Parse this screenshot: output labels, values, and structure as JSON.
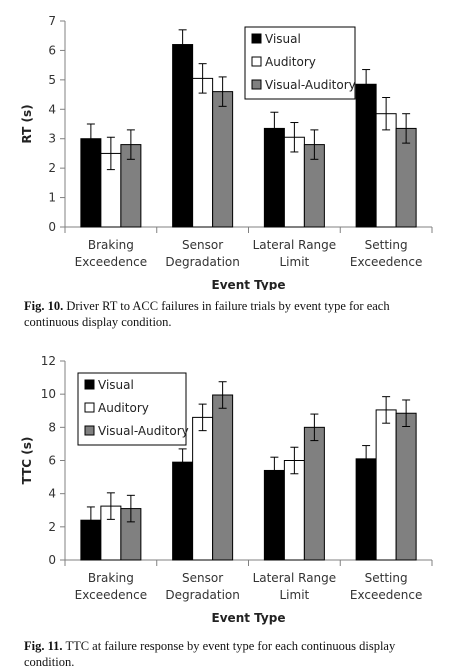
{
  "chart_data": [
    {
      "type": "bar",
      "ylabel": "RT (s)",
      "xlabel": "Event Type",
      "ylim": [
        0,
        7
      ],
      "yticks": [
        0,
        1,
        2,
        3,
        4,
        5,
        6,
        7
      ],
      "grid": false,
      "legend_position": "top-right",
      "categories": [
        [
          "Braking",
          "Exceedence"
        ],
        [
          "Sensor",
          "Degradation"
        ],
        [
          "Lateral Range",
          "Limit"
        ],
        [
          "Setting",
          "Exceedence"
        ]
      ],
      "series": [
        {
          "name": "Visual",
          "color": "#000000",
          "values": [
            3.0,
            6.2,
            3.35,
            4.85
          ],
          "errors": [
            0.5,
            0.5,
            0.55,
            0.5
          ]
        },
        {
          "name": "Auditory",
          "color": "#ffffff",
          "values": [
            2.5,
            5.05,
            3.05,
            3.85
          ],
          "errors": [
            0.55,
            0.5,
            0.5,
            0.55
          ]
        },
        {
          "name": "Visual-Auditory",
          "color": "#808080",
          "values": [
            2.8,
            4.6,
            2.8,
            3.35
          ],
          "errors": [
            0.5,
            0.5,
            0.5,
            0.5
          ]
        }
      ]
    },
    {
      "type": "bar",
      "ylabel": "TTC (s)",
      "xlabel": "Event Type",
      "ylim": [
        0,
        12
      ],
      "yticks": [
        0,
        2,
        4,
        6,
        8,
        10,
        12
      ],
      "grid": false,
      "legend_position": "top-left",
      "categories": [
        [
          "Braking",
          "Exceedence"
        ],
        [
          "Sensor",
          "Degradation"
        ],
        [
          "Lateral Range",
          "Limit"
        ],
        [
          "Setting",
          "Exceedence"
        ]
      ],
      "series": [
        {
          "name": "Visual",
          "color": "#000000",
          "values": [
            2.4,
            5.9,
            5.4,
            6.1
          ],
          "errors": [
            0.8,
            0.8,
            0.8,
            0.8
          ]
        },
        {
          "name": "Auditory",
          "color": "#ffffff",
          "values": [
            3.25,
            8.6,
            6.0,
            9.05
          ],
          "errors": [
            0.8,
            0.8,
            0.8,
            0.8
          ]
        },
        {
          "name": "Visual-Auditory",
          "color": "#808080",
          "values": [
            3.1,
            9.95,
            8.0,
            8.85
          ],
          "errors": [
            0.8,
            0.8,
            0.8,
            0.8
          ]
        }
      ]
    }
  ],
  "captions": [
    {
      "label": "Fig. 10.",
      "text": "Driver RT to ACC failures in failure trials by event type for each continuous display condition."
    },
    {
      "label": "Fig. 11.",
      "text": "TTC at failure response by event type for each continuous display condition."
    }
  ]
}
